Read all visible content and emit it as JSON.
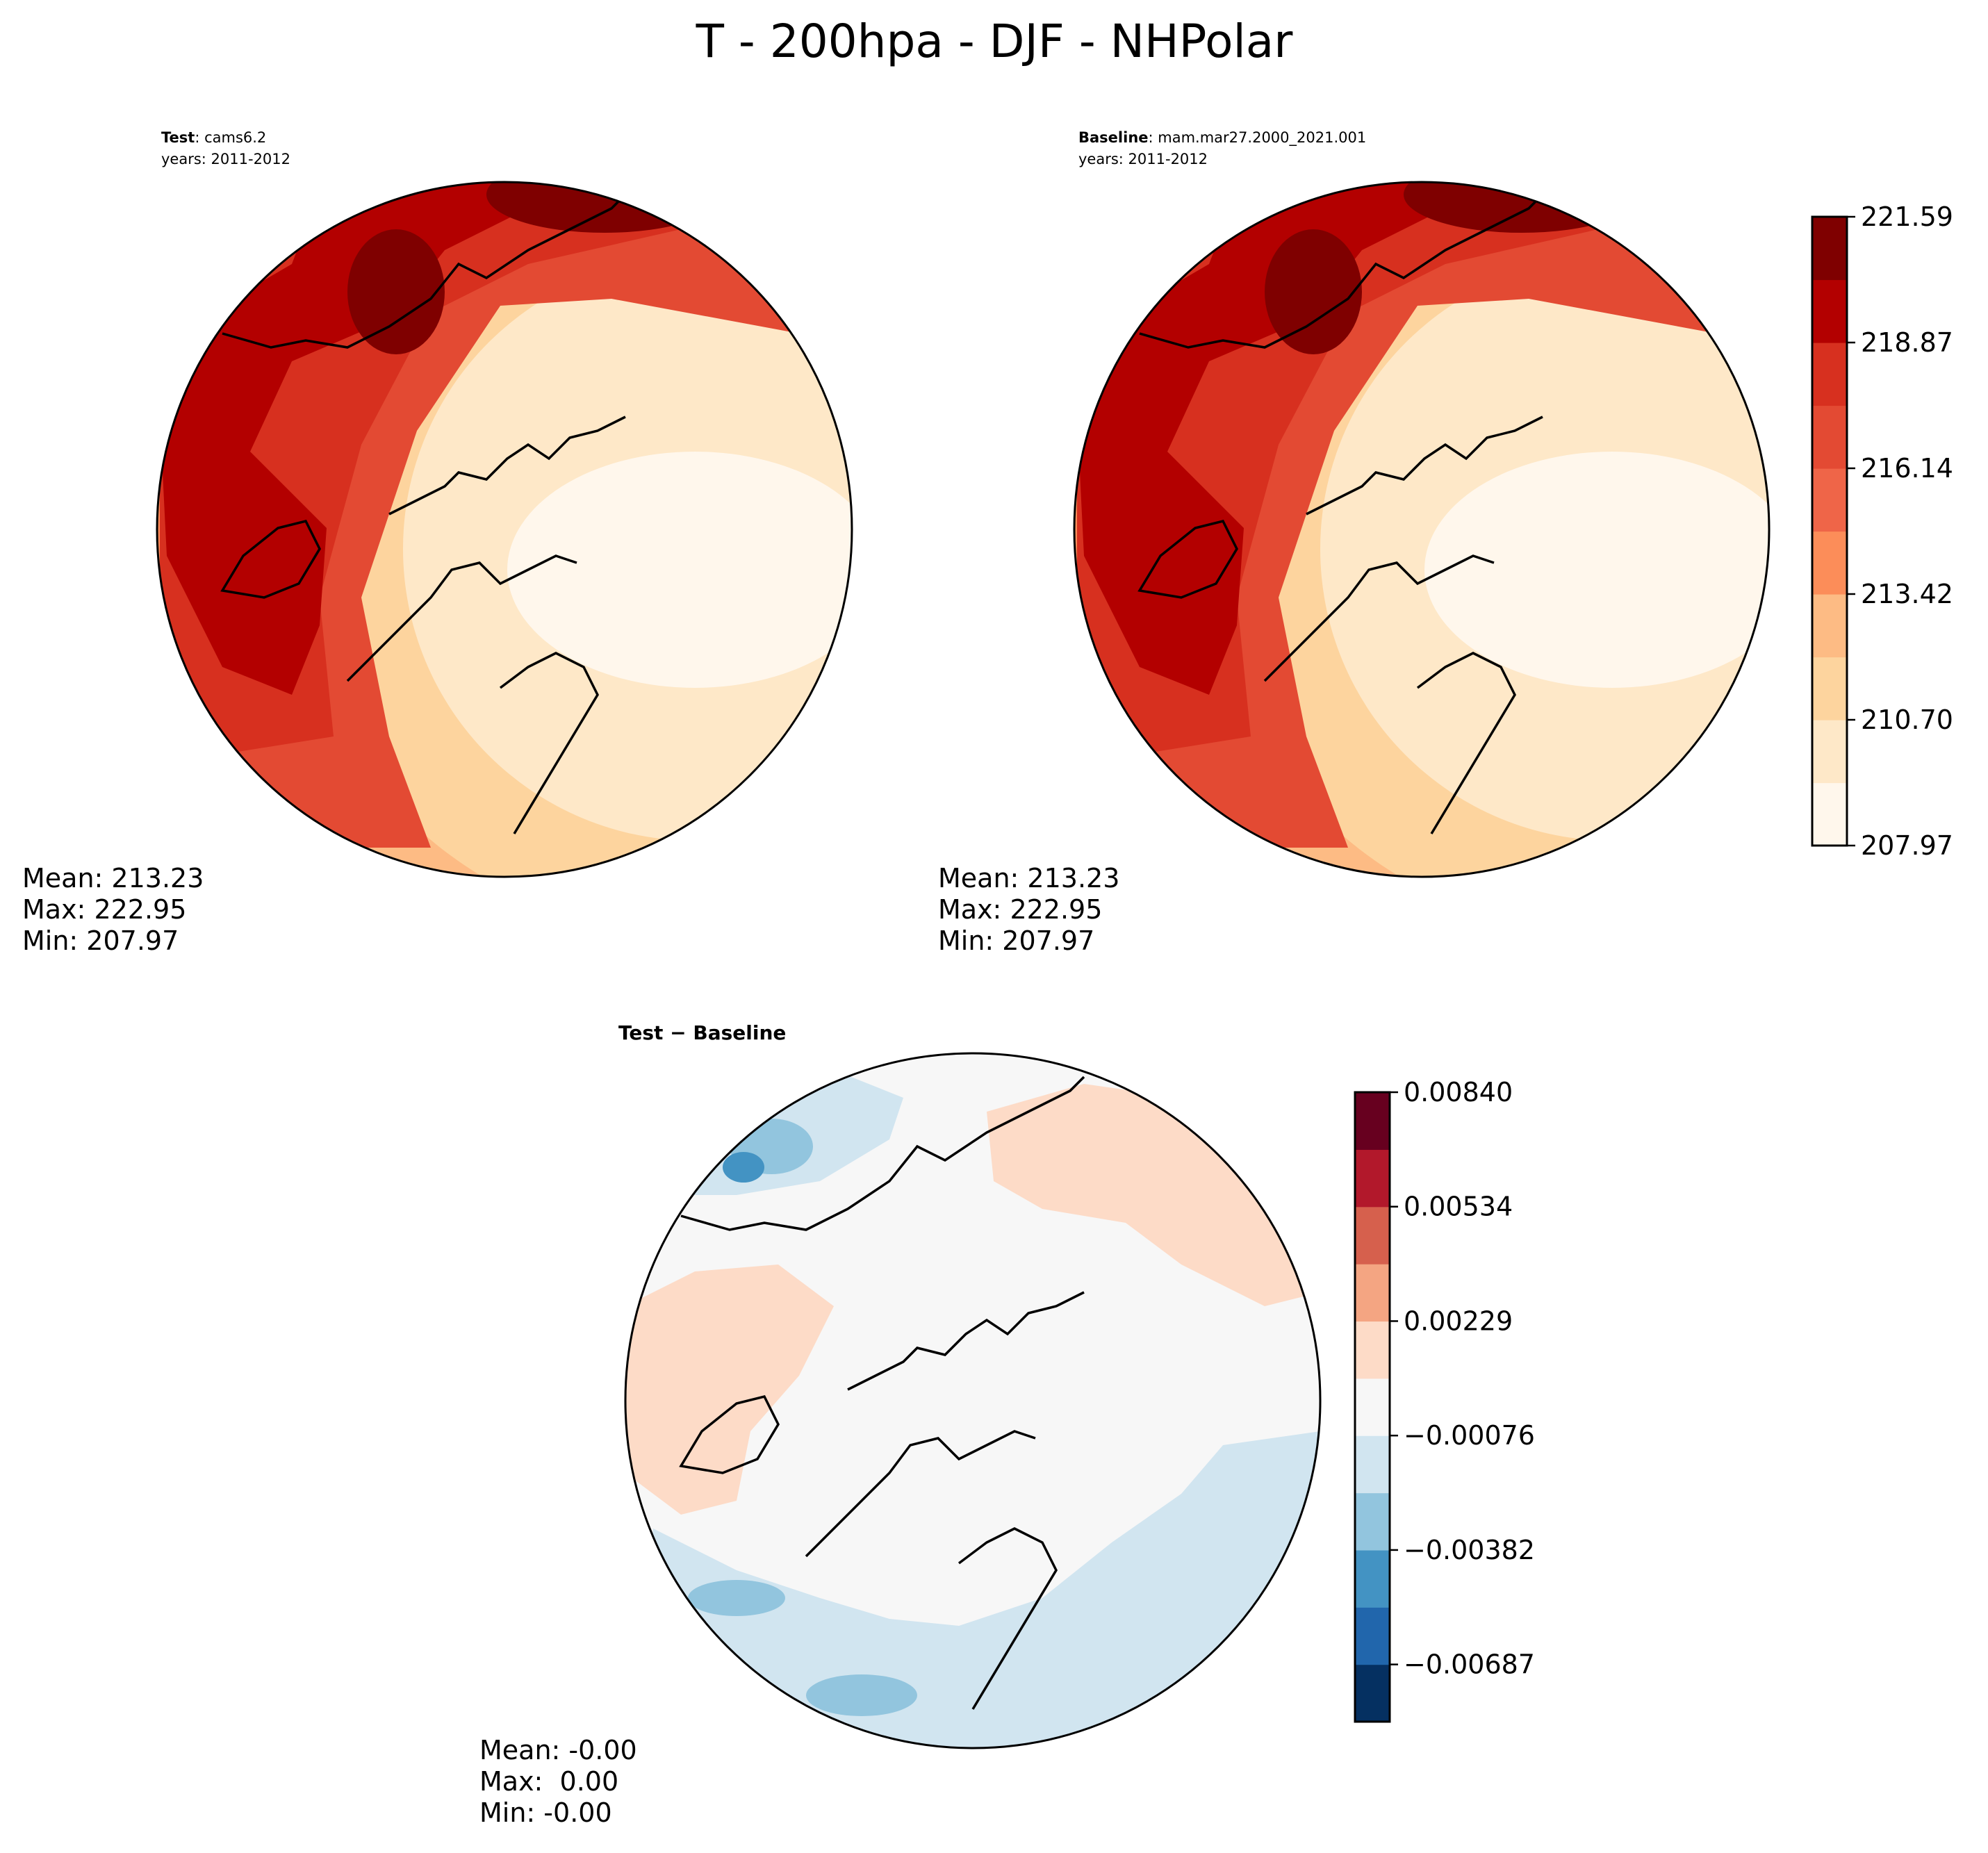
{
  "figure": {
    "title": "T - 200hpa - DJF - NHPolar"
  },
  "panels": {
    "test": {
      "label_bold": "Test",
      "label_rest": ": cams6.2",
      "years": "years: 2011-2012",
      "stats": {
        "mean": "Mean: 213.23",
        "max": "Max: 222.95",
        "min": "Min: 207.97"
      }
    },
    "baseline": {
      "label_bold": "Baseline",
      "label_rest": ": mam.mar27.2000_2021.001",
      "years": "years: 2011-2012",
      "stats": {
        "mean": "Mean: 213.23",
        "max": "Max: 222.95",
        "min": "Min: 207.97"
      }
    },
    "diff": {
      "label": "Test − Baseline",
      "stats": {
        "mean": "Mean: -0.00",
        "max": "Max:  0.00",
        "min": "Min: -0.00"
      }
    }
  },
  "chart_data": [
    {
      "type": "heatmap",
      "projection": "north polar stereographic",
      "panel": "test",
      "colormap": "OrRd",
      "levels_labeled": [
        "207.97",
        "210.70",
        "213.42",
        "216.14",
        "218.87",
        "221.59"
      ],
      "vmin": 207.97,
      "vmax": 222.95,
      "mean": 213.23,
      "max": 222.95,
      "min": 207.97
    },
    {
      "type": "heatmap",
      "projection": "north polar stereographic",
      "panel": "baseline",
      "colormap": "OrRd",
      "levels_labeled": [
        "207.97",
        "210.70",
        "213.42",
        "216.14",
        "218.87",
        "221.59"
      ],
      "vmin": 207.97,
      "vmax": 222.95,
      "mean": 213.23,
      "max": 222.95,
      "min": 207.97
    },
    {
      "type": "heatmap",
      "projection": "north polar stereographic",
      "panel": "diff",
      "colormap": "RdBu_r",
      "levels_labeled": [
        "0.00840",
        "0.00534",
        "0.00229",
        "−0.00076",
        "−0.00382",
        "−0.00687"
      ],
      "vmin": -0.0099,
      "vmax": 0.0084,
      "mean": -0.0,
      "max": 0.0,
      "min": -0.0
    }
  ],
  "colorbars": {
    "temp": {
      "colors": [
        "#fff7ec",
        "#fee8c8",
        "#fdd49e",
        "#fdbb84",
        "#fc8d59",
        "#ef6548",
        "#e34a33",
        "#d7301f",
        "#b30000",
        "#7f0000"
      ],
      "ticks": [
        "207.97",
        "210.70",
        "213.42",
        "216.14",
        "218.87",
        "221.59"
      ]
    },
    "diff": {
      "colors": [
        "#053061",
        "#2166ac",
        "#4393c3",
        "#92c5de",
        "#d1e5f0",
        "#f7f7f7",
        "#fddbc7",
        "#f4a582",
        "#d6604d",
        "#b2182b",
        "#67001f"
      ],
      "ticks": [
        "0.00840",
        "0.00534",
        "0.00229",
        "−0.00076",
        "−0.00382",
        "−0.00687"
      ]
    }
  }
}
